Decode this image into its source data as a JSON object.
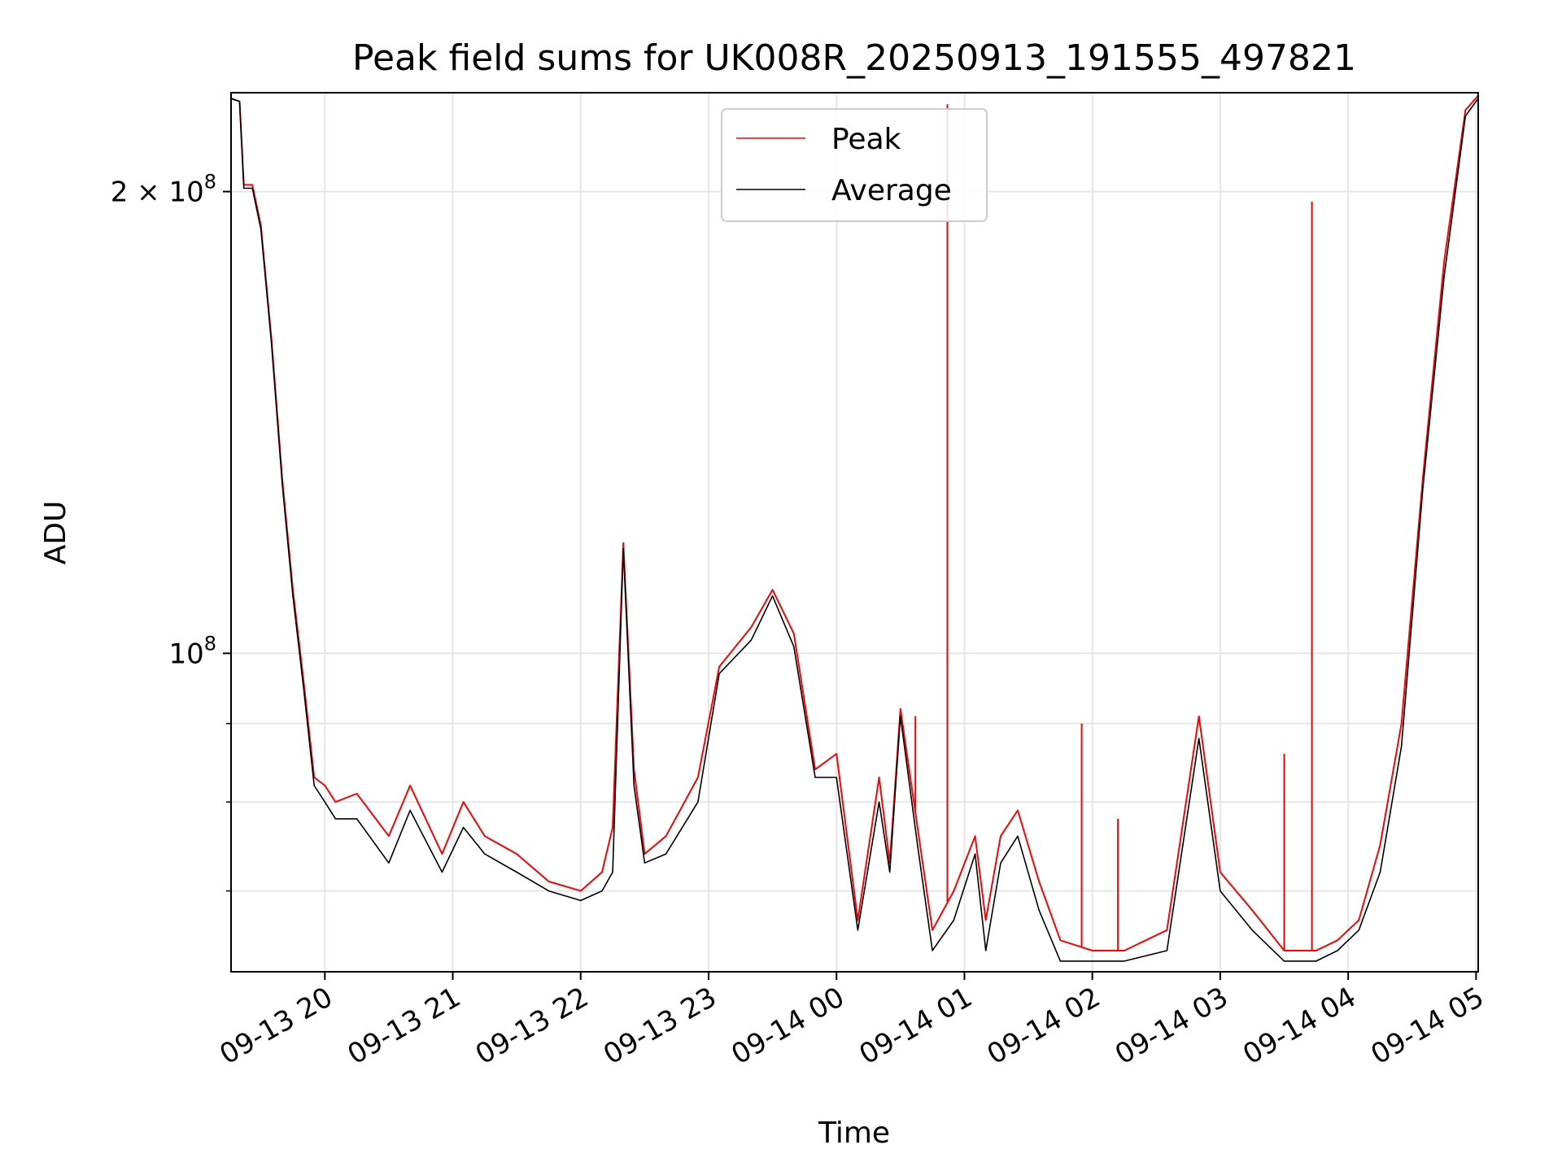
{
  "chart_data": {
    "type": "line",
    "title": "Peak field sums for UK008R_20250913_191555_497821",
    "xlabel": "Time",
    "ylabel": "ADU",
    "yscale": "log",
    "grid": true,
    "legend_position": "top-center",
    "xlim": [
      "2025-09-13 19:16",
      "2025-09-14 05:01"
    ],
    "ylim": [
      62000000,
      232000000
    ],
    "x_ticks": [
      {
        "value": "2025-09-13 20:00",
        "label": "09-13 20"
      },
      {
        "value": "2025-09-13 21:00",
        "label": "09-13 21"
      },
      {
        "value": "2025-09-13 22:00",
        "label": "09-13 22"
      },
      {
        "value": "2025-09-13 23:00",
        "label": "09-13 23"
      },
      {
        "value": "2025-09-14 00:00",
        "label": "09-14 00"
      },
      {
        "value": "2025-09-14 01:00",
        "label": "09-14 01"
      },
      {
        "value": "2025-09-14 02:00",
        "label": "09-14 02"
      },
      {
        "value": "2025-09-14 03:00",
        "label": "09-14 03"
      },
      {
        "value": "2025-09-14 04:00",
        "label": "09-14 04"
      },
      {
        "value": "2025-09-14 05:00",
        "label": "09-14 05"
      }
    ],
    "y_major_ticks": [
      {
        "value": 100000000,
        "label_base": "10",
        "label_exp": "8"
      },
      {
        "value": 200000000,
        "label_base": "2 × 10",
        "label_exp": "8"
      }
    ],
    "y_minor_ticks": [
      70000000,
      80000000,
      90000000
    ],
    "series": [
      {
        "name": "Peak",
        "color": "#ff0000",
        "x": [
          "2025-09-13 19:16",
          "2025-09-13 19:20",
          "2025-09-13 19:22",
          "2025-09-13 19:26",
          "2025-09-13 19:30",
          "2025-09-13 19:35",
          "2025-09-13 19:40",
          "2025-09-13 19:45",
          "2025-09-13 19:50",
          "2025-09-13 19:55",
          "2025-09-13 20:00",
          "2025-09-13 20:05",
          "2025-09-13 20:15",
          "2025-09-13 20:30",
          "2025-09-13 20:40",
          "2025-09-13 20:55",
          "2025-09-13 21:05",
          "2025-09-13 21:15",
          "2025-09-13 21:30",
          "2025-09-13 21:45",
          "2025-09-13 22:00",
          "2025-09-13 22:10",
          "2025-09-13 22:15",
          "2025-09-13 22:20",
          "2025-09-13 22:25",
          "2025-09-13 22:30",
          "2025-09-13 22:40",
          "2025-09-13 22:55",
          "2025-09-13 23:05",
          "2025-09-13 23:20",
          "2025-09-13 23:30",
          "2025-09-13 23:40",
          "2025-09-13 23:50",
          "2025-09-14 00:00",
          "2025-09-14 00:10",
          "2025-09-14 00:20",
          "2025-09-14 00:25",
          "2025-09-14 00:30",
          "2025-09-14 00:38",
          "2025-09-14 00:45",
          "2025-09-14 00:55",
          "2025-09-14 01:05",
          "2025-09-14 01:10",
          "2025-09-14 01:17",
          "2025-09-14 01:25",
          "2025-09-14 01:35",
          "2025-09-14 01:45",
          "2025-09-14 02:00",
          "2025-09-14 02:15",
          "2025-09-14 02:35",
          "2025-09-14 02:50",
          "2025-09-14 03:00",
          "2025-09-14 03:15",
          "2025-09-14 03:30",
          "2025-09-14 03:45",
          "2025-09-14 03:55",
          "2025-09-14 04:05",
          "2025-09-14 04:15",
          "2025-09-14 04:25",
          "2025-09-14 04:35",
          "2025-09-14 04:45",
          "2025-09-14 04:55",
          "2025-09-14 05:01"
        ],
        "values": [
          230000000,
          229000000,
          202000000,
          202000000,
          190000000,
          160000000,
          130000000,
          110000000,
          96000000,
          83000000,
          82000000,
          80000000,
          81000000,
          76000000,
          82000000,
          74000000,
          80000000,
          76000000,
          74000000,
          71000000,
          70000000,
          72000000,
          77000000,
          118000000,
          84000000,
          74000000,
          76000000,
          83000000,
          98000000,
          104000000,
          110000000,
          103000000,
          84000000,
          86000000,
          67000000,
          83000000,
          73000000,
          92000000,
          77000000,
          66000000,
          70000000,
          76000000,
          67000000,
          76000000,
          79000000,
          71000000,
          65000000,
          64000000,
          64000000,
          66000000,
          91000000,
          72000000,
          68000000,
          64000000,
          64000000,
          65000000,
          67000000,
          75000000,
          90000000,
          130000000,
          180000000,
          226000000,
          231000000
        ]
      },
      {
        "name": "Average",
        "color": "#000000",
        "x": [
          "2025-09-13 19:16",
          "2025-09-13 19:20",
          "2025-09-13 19:22",
          "2025-09-13 19:26",
          "2025-09-13 19:30",
          "2025-09-13 19:35",
          "2025-09-13 19:40",
          "2025-09-13 19:45",
          "2025-09-13 19:50",
          "2025-09-13 19:55",
          "2025-09-13 20:00",
          "2025-09-13 20:05",
          "2025-09-13 20:15",
          "2025-09-13 20:30",
          "2025-09-13 20:40",
          "2025-09-13 20:55",
          "2025-09-13 21:05",
          "2025-09-13 21:15",
          "2025-09-13 21:30",
          "2025-09-13 21:45",
          "2025-09-13 22:00",
          "2025-09-13 22:10",
          "2025-09-13 22:15",
          "2025-09-13 22:20",
          "2025-09-13 22:25",
          "2025-09-13 22:30",
          "2025-09-13 22:40",
          "2025-09-13 22:55",
          "2025-09-13 23:05",
          "2025-09-13 23:20",
          "2025-09-13 23:30",
          "2025-09-13 23:40",
          "2025-09-13 23:50",
          "2025-09-14 00:00",
          "2025-09-14 00:10",
          "2025-09-14 00:20",
          "2025-09-14 00:25",
          "2025-09-14 00:30",
          "2025-09-14 00:38",
          "2025-09-14 00:45",
          "2025-09-14 00:55",
          "2025-09-14 01:05",
          "2025-09-14 01:10",
          "2025-09-14 01:17",
          "2025-09-14 01:25",
          "2025-09-14 01:35",
          "2025-09-14 01:45",
          "2025-09-14 02:00",
          "2025-09-14 02:15",
          "2025-09-14 02:35",
          "2025-09-14 02:50",
          "2025-09-14 03:00",
          "2025-09-14 03:15",
          "2025-09-14 03:30",
          "2025-09-14 03:45",
          "2025-09-14 03:55",
          "2025-09-14 04:05",
          "2025-09-14 04:15",
          "2025-09-14 04:25",
          "2025-09-14 04:35",
          "2025-09-14 04:45",
          "2025-09-14 04:55",
          "2025-09-14 05:01"
        ],
        "values": [
          230000000,
          229000000,
          201000000,
          201000000,
          189000000,
          159000000,
          129000000,
          109000000,
          95000000,
          82000000,
          80000000,
          78000000,
          78000000,
          73000000,
          79000000,
          72000000,
          77000000,
          74000000,
          72000000,
          70000000,
          69000000,
          70000000,
          72000000,
          117000000,
          82000000,
          73000000,
          74000000,
          80000000,
          97000000,
          102000000,
          109000000,
          101000000,
          83000000,
          83000000,
          66000000,
          80000000,
          72000000,
          91000000,
          75000000,
          64000000,
          67000000,
          74000000,
          64000000,
          73000000,
          76000000,
          68000000,
          63000000,
          63000000,
          63000000,
          64000000,
          88000000,
          70000000,
          66000000,
          63000000,
          63000000,
          64000000,
          66000000,
          72000000,
          87000000,
          128000000,
          176000000,
          224000000,
          230000000
        ]
      }
    ],
    "spikes": [
      {
        "series": "Peak",
        "x": "2025-09-14 00:52",
        "value": 228000000
      },
      {
        "series": "Peak",
        "x": "2025-09-14 03:43",
        "value": 197000000
      },
      {
        "series": "Peak",
        "x": "2025-09-14 01:55",
        "value": 90000000
      },
      {
        "series": "Peak",
        "x": "2025-09-14 03:30",
        "value": 86000000
      },
      {
        "series": "Peak",
        "x": "2025-09-14 02:12",
        "value": 78000000
      },
      {
        "series": "Peak",
        "x": "2025-09-14 00:37",
        "value": 91000000
      }
    ]
  }
}
